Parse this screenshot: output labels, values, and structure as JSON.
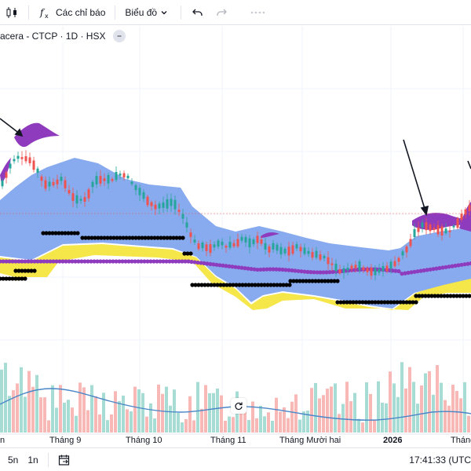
{
  "toolbar": {
    "indicators_label": "Các chỉ báo",
    "chart_type_label": "Biểu đồ"
  },
  "legend": {
    "symbol_text": "acera - CTCP · 1D · HSX"
  },
  "time_axis": {
    "labels": [
      "n",
      "Tháng 9",
      "Tháng 10",
      "Tháng 11",
      "Tháng Mười hai",
      "2026",
      "Tháng"
    ]
  },
  "bottom_bar": {
    "ranges": [
      "5n",
      "1n"
    ],
    "clock": "17:41:33 (UTC"
  },
  "colors": {
    "up": "#26a69a",
    "down": "#ef5350",
    "cloud_blue": "#88aaee",
    "cloud_yellow": "#f5e64a",
    "purple": "#8e3bbd",
    "ma_line": "#4a86c8",
    "dots_black": "#000000"
  },
  "icons": {
    "candles": "candlestick-icon",
    "indicators": "fx-icon",
    "chart_type": "chevron-down-icon",
    "undo": "undo-icon",
    "redo": "redo-icon",
    "layout": "dots-grid-icon",
    "reset": "reset-icon",
    "go_to_date": "calendar-goto-icon"
  }
}
